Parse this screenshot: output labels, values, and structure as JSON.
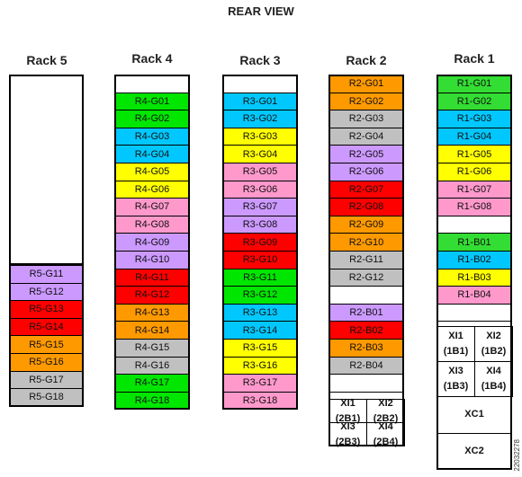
{
  "title": "REAR VIEW",
  "doc_id": "22032278",
  "colors": {
    "green": "#00e600",
    "lime": "#33dd33",
    "cyan": "#00c8ff",
    "yellow": "#ffff00",
    "pink": "#ff99cc",
    "purple": "#cc99ff",
    "red": "#ff0000",
    "orange": "#ff9900",
    "gray": "#c0c0c0",
    "white": "#ffffff"
  },
  "racks": [
    {
      "name": "Rack 5",
      "slots": [
        {
          "label": "R5-G11",
          "color": "purple"
        },
        {
          "label": "R5-G12",
          "color": "purple"
        },
        {
          "label": "R5-G13",
          "color": "red"
        },
        {
          "label": "R5-G14",
          "color": "red"
        },
        {
          "label": "R5-G15",
          "color": "orange"
        },
        {
          "label": "R5-G16",
          "color": "orange"
        },
        {
          "label": "R5-G17",
          "color": "gray"
        },
        {
          "label": "R5-G18",
          "color": "gray"
        }
      ]
    },
    {
      "name": "Rack 4",
      "slots": [
        {
          "label": "",
          "color": "white"
        },
        {
          "label": "R4-G01",
          "color": "green"
        },
        {
          "label": "R4-G02",
          "color": "green"
        },
        {
          "label": "R4-G03",
          "color": "cyan"
        },
        {
          "label": "R4-G04",
          "color": "cyan"
        },
        {
          "label": "R4-G05",
          "color": "yellow"
        },
        {
          "label": "R4-G06",
          "color": "yellow"
        },
        {
          "label": "R4-G07",
          "color": "pink"
        },
        {
          "label": "R4-G08",
          "color": "pink"
        },
        {
          "label": "R4-G09",
          "color": "purple"
        },
        {
          "label": "R4-G10",
          "color": "purple"
        },
        {
          "label": "R4-G11",
          "color": "red"
        },
        {
          "label": "R4-G12",
          "color": "red"
        },
        {
          "label": "R4-G13",
          "color": "orange"
        },
        {
          "label": "R4-G14",
          "color": "orange"
        },
        {
          "label": "R4-G15",
          "color": "gray"
        },
        {
          "label": "R4-G16",
          "color": "gray"
        },
        {
          "label": "R4-G17",
          "color": "green"
        },
        {
          "label": "R4-G18",
          "color": "green"
        }
      ]
    },
    {
      "name": "Rack 3",
      "slots": [
        {
          "label": "",
          "color": "white"
        },
        {
          "label": "R3-G01",
          "color": "cyan"
        },
        {
          "label": "R3-G02",
          "color": "cyan"
        },
        {
          "label": "R3-G03",
          "color": "yellow"
        },
        {
          "label": "R3-G04",
          "color": "yellow"
        },
        {
          "label": "R3-G05",
          "color": "pink"
        },
        {
          "label": "R3-G06",
          "color": "pink"
        },
        {
          "label": "R3-G07",
          "color": "purple"
        },
        {
          "label": "R3-G08",
          "color": "purple"
        },
        {
          "label": "R3-G09",
          "color": "red"
        },
        {
          "label": "R3-G10",
          "color": "red"
        },
        {
          "label": "R3-G11",
          "color": "green"
        },
        {
          "label": "R3-G12",
          "color": "green"
        },
        {
          "label": "R3-G13",
          "color": "cyan"
        },
        {
          "label": "R3-G14",
          "color": "cyan"
        },
        {
          "label": "R3-G15",
          "color": "yellow"
        },
        {
          "label": "R3-G16",
          "color": "yellow"
        },
        {
          "label": "R3-G17",
          "color": "pink"
        },
        {
          "label": "R3-G18",
          "color": "pink"
        }
      ]
    },
    {
      "name": "Rack 2",
      "slots": [
        {
          "label": "R2-G01",
          "color": "orange"
        },
        {
          "label": "R2-G02",
          "color": "orange"
        },
        {
          "label": "R2-G03",
          "color": "gray"
        },
        {
          "label": "R2-G04",
          "color": "gray"
        },
        {
          "label": "R2-G05",
          "color": "purple"
        },
        {
          "label": "R2-G06",
          "color": "purple"
        },
        {
          "label": "R2-G07",
          "color": "red"
        },
        {
          "label": "R2-G08",
          "color": "red"
        },
        {
          "label": "R2-G09",
          "color": "orange"
        },
        {
          "label": "R2-G10",
          "color": "orange"
        },
        {
          "label": "R2-G11",
          "color": "gray"
        },
        {
          "label": "R2-G12",
          "color": "gray"
        },
        {
          "label": "",
          "color": "white"
        },
        {
          "label": "R2-B01",
          "color": "purple"
        },
        {
          "label": "R2-B02",
          "color": "red"
        },
        {
          "label": "R2-B03",
          "color": "orange"
        },
        {
          "label": "R2-B04",
          "color": "gray"
        },
        {
          "label": "",
          "color": "white"
        }
      ],
      "xi": [
        {
          "line1": "XI1",
          "line2": "(2B1)"
        },
        {
          "line1": "XI2",
          "line2": "(2B2)"
        },
        {
          "line1": "XI3",
          "line2": "(2B3)"
        },
        {
          "line1": "XI4",
          "line2": "(2B4)"
        }
      ]
    },
    {
      "name": "Rack 1",
      "slots": [
        {
          "label": "R1-G01",
          "color": "lime"
        },
        {
          "label": "R1-G02",
          "color": "lime"
        },
        {
          "label": "R1-G03",
          "color": "cyan"
        },
        {
          "label": "R1-G04",
          "color": "cyan"
        },
        {
          "label": "R1-G05",
          "color": "yellow"
        },
        {
          "label": "R1-G06",
          "color": "yellow"
        },
        {
          "label": "R1-G07",
          "color": "pink"
        },
        {
          "label": "R1-G08",
          "color": "pink"
        },
        {
          "label": "",
          "color": "white"
        },
        {
          "label": "R1-B01",
          "color": "lime"
        },
        {
          "label": "R1-B02",
          "color": "cyan"
        },
        {
          "label": "R1-B03",
          "color": "yellow"
        },
        {
          "label": "R1-B04",
          "color": "pink"
        },
        {
          "label": "",
          "color": "white"
        }
      ],
      "xi": [
        {
          "line1": "XI1",
          "line2": "(1B1)"
        },
        {
          "line1": "XI2",
          "line2": "(1B2)"
        },
        {
          "line1": "XI3",
          "line2": "(1B3)"
        },
        {
          "line1": "XI4",
          "line2": "(1B4)"
        }
      ],
      "xc": [
        "XC1",
        "XC2"
      ]
    }
  ]
}
